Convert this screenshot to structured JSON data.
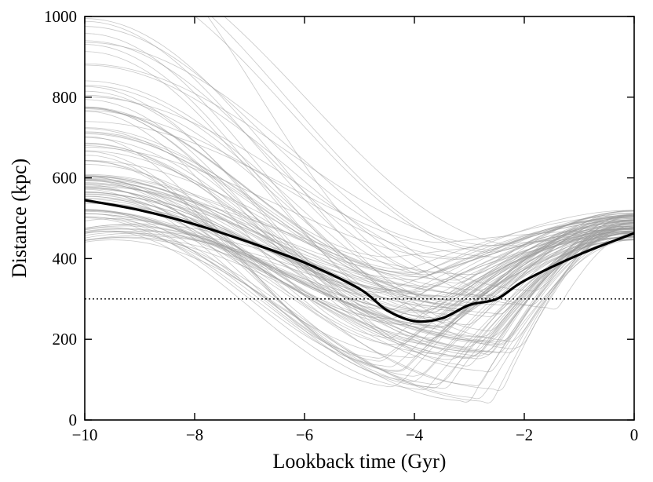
{
  "chart_data": {
    "type": "line",
    "title": "",
    "xlabel": "Lookback time (Gyr)",
    "ylabel": "Distance (kpc)",
    "xlim": [
      -10,
      0
    ],
    "ylim": [
      0,
      1000
    ],
    "x_ticks": [
      -10,
      -8,
      -6,
      -4,
      -2,
      0
    ],
    "y_ticks": [
      0,
      200,
      400,
      600,
      800,
      1000
    ],
    "x_tick_labels": [
      "−10",
      "−8",
      "−6",
      "−4",
      "−2",
      "0"
    ],
    "y_tick_labels": [
      "0",
      "200",
      "400",
      "600",
      "800",
      "1000"
    ],
    "grid": false,
    "legend": "none",
    "reference_line": {
      "y": 300,
      "style": "dotted",
      "color": "#000000"
    },
    "main_series": {
      "color": "#000000",
      "x": [
        -10,
        -9,
        -8,
        -7,
        -6,
        -5,
        -4.5,
        -4,
        -3.5,
        -3,
        -2.5,
        -2,
        -1,
        0
      ],
      "y": [
        545,
        520,
        485,
        440,
        390,
        325,
        272,
        245,
        252,
        285,
        300,
        345,
        410,
        463
      ]
    },
    "ensemble": {
      "color": "#9a9a9a",
      "count": 110,
      "description_of_envelope": {
        "x_min_point": [
          -10,
          440
        ],
        "y_at_x0_range": [
          440,
          520
        ],
        "lowest_pericenter": [
          -3.2,
          45
        ]
      }
    }
  },
  "colors": {
    "main": "#000000",
    "ensemble": "#9a9a9a",
    "axes": "#000000"
  }
}
